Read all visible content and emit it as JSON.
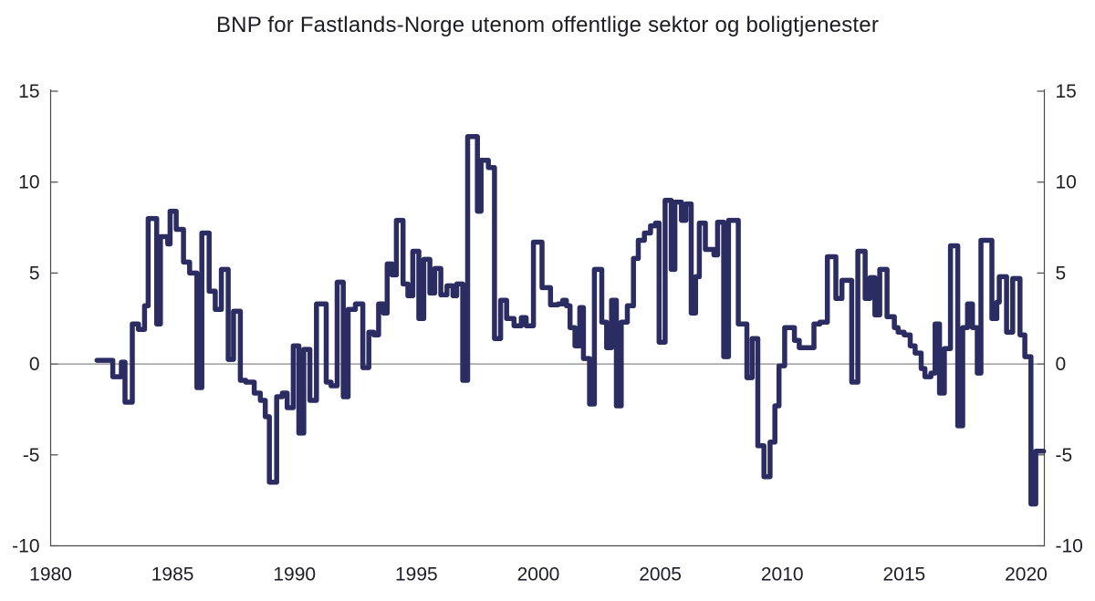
{
  "title": "BNP for Fastlands-Norge utenom offentlige sektor og boligtjenester",
  "colors": {
    "line": "#2a2c62",
    "axis": "#4a4a4a",
    "zero_line": "#8a8a8a",
    "text": "#1d1d28",
    "background": "#ffffff"
  },
  "chart_data": {
    "type": "line",
    "line_style": "step-after",
    "title": "BNP for Fastlands-Norge utenom offentlige sektor og boligtjenester",
    "xlabel": "",
    "ylabel": "",
    "xlim": [
      1980,
      2020.75
    ],
    "ylim": [
      -10,
      15
    ],
    "x_ticks": [
      1980,
      1985,
      1990,
      1995,
      2000,
      2005,
      2010,
      2015,
      2020
    ],
    "y_ticks": [
      15,
      10,
      5,
      0,
      -5,
      -10
    ],
    "y_ticks_right": [
      15,
      10,
      5,
      0,
      -5,
      -10
    ],
    "grid": false,
    "zero_line": true,
    "legend": "none",
    "x_unit": "year (quarterly steps)",
    "y_unit": "percent (four-quarter growth)",
    "x_end": 2020.72,
    "steps": [
      [
        1981.9,
        0.2
      ],
      [
        1982.55,
        -0.7
      ],
      [
        1982.9,
        0.1
      ],
      [
        1983.05,
        -2.1
      ],
      [
        1983.35,
        2.2
      ],
      [
        1983.6,
        1.9
      ],
      [
        1983.85,
        3.2
      ],
      [
        1984.0,
        8.0
      ],
      [
        1984.35,
        2.2
      ],
      [
        1984.5,
        7.0
      ],
      [
        1984.8,
        6.6
      ],
      [
        1984.9,
        8.4
      ],
      [
        1985.15,
        7.4
      ],
      [
        1985.45,
        5.6
      ],
      [
        1985.7,
        5.0
      ],
      [
        1986.0,
        -1.3
      ],
      [
        1986.2,
        7.2
      ],
      [
        1986.5,
        4.0
      ],
      [
        1986.75,
        3.0
      ],
      [
        1987.0,
        5.2
      ],
      [
        1987.28,
        0.25
      ],
      [
        1987.5,
        2.9
      ],
      [
        1987.78,
        -0.9
      ],
      [
        1988.0,
        -1.0
      ],
      [
        1988.35,
        -1.6
      ],
      [
        1988.6,
        -2.0
      ],
      [
        1988.8,
        -2.9
      ],
      [
        1988.97,
        -6.5
      ],
      [
        1989.27,
        -1.8
      ],
      [
        1989.5,
        -1.6
      ],
      [
        1989.7,
        -2.4
      ],
      [
        1989.95,
        1.0
      ],
      [
        1990.18,
        -3.8
      ],
      [
        1990.38,
        0.8
      ],
      [
        1990.63,
        -2.0
      ],
      [
        1990.9,
        3.3
      ],
      [
        1991.3,
        -1.0
      ],
      [
        1991.5,
        -1.2
      ],
      [
        1991.75,
        4.5
      ],
      [
        1992.0,
        -1.8
      ],
      [
        1992.2,
        3.0
      ],
      [
        1992.5,
        3.3
      ],
      [
        1992.8,
        -0.2
      ],
      [
        1993.05,
        1.75
      ],
      [
        1993.25,
        1.6
      ],
      [
        1993.45,
        3.3
      ],
      [
        1993.65,
        2.8
      ],
      [
        1993.8,
        5.5
      ],
      [
        1994.0,
        4.9
      ],
      [
        1994.18,
        7.9
      ],
      [
        1994.45,
        4.4
      ],
      [
        1994.65,
        3.75
      ],
      [
        1994.85,
        6.2
      ],
      [
        1995.1,
        2.5
      ],
      [
        1995.3,
        5.75
      ],
      [
        1995.55,
        3.9
      ],
      [
        1995.75,
        5.25
      ],
      [
        1996.0,
        3.8
      ],
      [
        1996.25,
        4.3
      ],
      [
        1996.5,
        3.75
      ],
      [
        1996.65,
        4.4
      ],
      [
        1996.9,
        -0.9
      ],
      [
        1997.1,
        12.5
      ],
      [
        1997.5,
        8.4
      ],
      [
        1997.65,
        11.2
      ],
      [
        1997.95,
        10.8
      ],
      [
        1998.2,
        1.4
      ],
      [
        1998.45,
        3.5
      ],
      [
        1998.7,
        2.5
      ],
      [
        1999.0,
        2.1
      ],
      [
        1999.3,
        2.55
      ],
      [
        1999.5,
        2.1
      ],
      [
        1999.8,
        6.7
      ],
      [
        2000.15,
        4.2
      ],
      [
        2000.5,
        3.25
      ],
      [
        2000.8,
        3.3
      ],
      [
        2001.0,
        3.5
      ],
      [
        2001.15,
        3.2
      ],
      [
        2001.3,
        2.0
      ],
      [
        2001.5,
        1.0
      ],
      [
        2001.7,
        3.1
      ],
      [
        2001.85,
        0.3
      ],
      [
        2002.1,
        -2.2
      ],
      [
        2002.3,
        5.2
      ],
      [
        2002.6,
        2.3
      ],
      [
        2002.8,
        0.9
      ],
      [
        2003.0,
        3.5
      ],
      [
        2003.2,
        -2.3
      ],
      [
        2003.4,
        2.3
      ],
      [
        2003.65,
        3.2
      ],
      [
        2003.9,
        5.8
      ],
      [
        2004.1,
        6.8
      ],
      [
        2004.35,
        7.2
      ],
      [
        2004.6,
        7.6
      ],
      [
        2004.8,
        7.75
      ],
      [
        2004.95,
        1.2
      ],
      [
        2005.2,
        9.0
      ],
      [
        2005.45,
        5.2
      ],
      [
        2005.6,
        8.9
      ],
      [
        2005.87,
        7.9
      ],
      [
        2006.05,
        8.8
      ],
      [
        2006.27,
        2.8
      ],
      [
        2006.45,
        4.8
      ],
      [
        2006.6,
        7.75
      ],
      [
        2006.85,
        6.3
      ],
      [
        2007.2,
        6.0
      ],
      [
        2007.35,
        7.8
      ],
      [
        2007.6,
        0.4
      ],
      [
        2007.8,
        7.9
      ],
      [
        2008.2,
        2.2
      ],
      [
        2008.55,
        -0.75
      ],
      [
        2008.77,
        1.4
      ],
      [
        2009.0,
        -4.5
      ],
      [
        2009.25,
        -6.2
      ],
      [
        2009.5,
        -4.3
      ],
      [
        2009.7,
        -2.3
      ],
      [
        2009.87,
        -0.1
      ],
      [
        2010.1,
        2.0
      ],
      [
        2010.5,
        1.3
      ],
      [
        2010.7,
        0.9
      ],
      [
        2011.3,
        2.2
      ],
      [
        2011.55,
        2.3
      ],
      [
        2011.85,
        5.9
      ],
      [
        2012.2,
        3.6
      ],
      [
        2012.45,
        4.6
      ],
      [
        2012.85,
        -1.0
      ],
      [
        2013.1,
        6.2
      ],
      [
        2013.4,
        3.6
      ],
      [
        2013.6,
        4.75
      ],
      [
        2013.8,
        2.7
      ],
      [
        2014.0,
        5.2
      ],
      [
        2014.3,
        2.6
      ],
      [
        2014.6,
        2.0
      ],
      [
        2014.75,
        1.75
      ],
      [
        2015.0,
        1.6
      ],
      [
        2015.25,
        1.0
      ],
      [
        2015.45,
        0.6
      ],
      [
        2015.7,
        -0.25
      ],
      [
        2015.85,
        -0.7
      ],
      [
        2016.1,
        -0.5
      ],
      [
        2016.27,
        2.2
      ],
      [
        2016.45,
        -1.6
      ],
      [
        2016.65,
        0.85
      ],
      [
        2016.9,
        6.5
      ],
      [
        2017.2,
        -3.4
      ],
      [
        2017.4,
        2.0
      ],
      [
        2017.6,
        3.3
      ],
      [
        2017.8,
        2.0
      ],
      [
        2018.0,
        -0.5
      ],
      [
        2018.15,
        6.8
      ],
      [
        2018.6,
        2.5
      ],
      [
        2018.8,
        3.4
      ],
      [
        2018.9,
        4.8
      ],
      [
        2019.2,
        1.75
      ],
      [
        2019.45,
        4.7
      ],
      [
        2019.75,
        1.6
      ],
      [
        2019.95,
        0.4
      ],
      [
        2020.2,
        -7.7
      ],
      [
        2020.4,
        -4.8
      ]
    ]
  }
}
